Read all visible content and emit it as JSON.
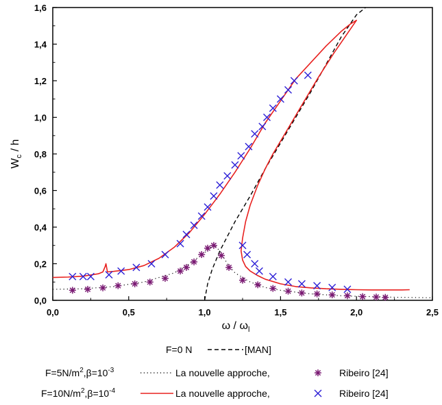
{
  "chart_data": {
    "type": "line",
    "xlabel": "ω / ω",
    "xlabel_sub": "l",
    "ylabel": "W",
    "ylabel_sub": "c",
    "ylabel_rest": " / h",
    "xlim": [
      0.0,
      2.5
    ],
    "ylim": [
      0.0,
      1.6
    ],
    "x_ticks": [
      "0,0",
      "0,5",
      "1,0",
      "1,5",
      "2,0",
      "2,5"
    ],
    "y_ticks": [
      "0,0",
      "0,2",
      "0,4",
      "0,6",
      "0,8",
      "1,0",
      "1,2",
      "1,4",
      "1,6"
    ],
    "grid": false,
    "colors": {
      "red": "#e8201e",
      "blue": "#2c1fd6",
      "purple": "#7a1a73",
      "black": "#000000"
    },
    "series": [
      {
        "key": "man_f0",
        "name": "[MAN]",
        "style": "dashed",
        "color": "#000000",
        "x": [
          1.0,
          1.02,
          1.05,
          1.1,
          1.2,
          1.3,
          1.4,
          1.5,
          1.6,
          1.7,
          1.8,
          1.9,
          2.0,
          2.06
        ],
        "y": [
          0.0,
          0.09,
          0.17,
          0.27,
          0.43,
          0.57,
          0.72,
          0.86,
          1.0,
          1.14,
          1.29,
          1.44,
          1.56,
          1.6
        ]
      },
      {
        "key": "nouvelle_f5",
        "name": "La nouvelle approche,",
        "style": "dotted",
        "color": "#000000",
        "x": [
          0.0,
          0.2,
          0.4,
          0.6,
          0.8,
          0.9,
          1.0,
          1.06,
          1.1,
          1.15,
          1.2,
          1.3,
          1.4,
          1.5,
          1.6,
          1.7,
          1.8,
          1.9,
          2.0,
          2.1,
          2.2,
          2.3,
          2.4,
          2.5
        ],
        "y": [
          0.06,
          0.063,
          0.075,
          0.1,
          0.15,
          0.2,
          0.26,
          0.305,
          0.27,
          0.2,
          0.15,
          0.1,
          0.07,
          0.055,
          0.045,
          0.035,
          0.03,
          0.025,
          0.022,
          0.02,
          0.018,
          0.016,
          0.015,
          0.014
        ]
      },
      {
        "key": "ribeiro_f5",
        "name": "Ribeiro [24]",
        "style": "asterisk",
        "color": "#7a1a73",
        "x": [
          0.13,
          0.23,
          0.33,
          0.43,
          0.54,
          0.64,
          0.74,
          0.84,
          0.88,
          0.93,
          0.98,
          1.02,
          1.06,
          1.11,
          1.16,
          1.25,
          1.35,
          1.45,
          1.55,
          1.64,
          1.74,
          1.84,
          1.94,
          2.04,
          2.13,
          2.19
        ],
        "y": [
          0.055,
          0.06,
          0.068,
          0.08,
          0.09,
          0.1,
          0.12,
          0.16,
          0.18,
          0.21,
          0.25,
          0.285,
          0.3,
          0.245,
          0.18,
          0.11,
          0.085,
          0.065,
          0.05,
          0.04,
          0.035,
          0.03,
          0.025,
          0.02,
          0.018,
          0.016
        ]
      },
      {
        "key": "nouvelle_f10",
        "name": "La nouvelle approche,",
        "style": "solid",
        "color": "#e8201e",
        "x": [
          0.0,
          0.1,
          0.2,
          0.3,
          0.33,
          0.345,
          0.35,
          0.36,
          0.4,
          0.5,
          0.6,
          0.7,
          0.8,
          0.9,
          1.0,
          1.1,
          1.2,
          1.3,
          1.4,
          1.5,
          1.6,
          1.7,
          1.8,
          1.9,
          1.96,
          2.0,
          1.95,
          1.85,
          1.75,
          1.65,
          1.55,
          1.45,
          1.4,
          1.35,
          1.3,
          1.27,
          1.25,
          1.24,
          1.25,
          1.27,
          1.3,
          1.35,
          1.4,
          1.5,
          1.6,
          1.7,
          1.8,
          1.9,
          2.0,
          2.1,
          2.2,
          2.3,
          2.35
        ],
        "y": [
          0.125,
          0.127,
          0.132,
          0.145,
          0.155,
          0.185,
          0.2,
          0.155,
          0.158,
          0.168,
          0.19,
          0.23,
          0.29,
          0.37,
          0.47,
          0.58,
          0.7,
          0.83,
          0.97,
          1.09,
          1.21,
          1.3,
          1.39,
          1.47,
          1.51,
          1.53,
          1.47,
          1.35,
          1.22,
          1.08,
          0.94,
          0.8,
          0.72,
          0.63,
          0.52,
          0.43,
          0.34,
          0.27,
          0.22,
          0.185,
          0.16,
          0.135,
          0.115,
          0.09,
          0.075,
          0.068,
          0.063,
          0.06,
          0.058,
          0.057,
          0.057,
          0.057,
          0.058
        ]
      },
      {
        "key": "ribeiro_f10",
        "name": "Ribeiro [24]",
        "style": "x",
        "color": "#2c1fd6",
        "x": [
          0.13,
          0.2,
          0.25,
          0.37,
          0.45,
          0.55,
          0.65,
          0.74,
          0.84,
          0.88,
          0.93,
          0.98,
          1.02,
          1.06,
          1.1,
          1.15,
          1.2,
          1.24,
          1.29,
          1.33,
          1.38,
          1.41,
          1.45,
          1.5,
          1.55,
          1.59,
          1.68,
          1.25,
          1.28,
          1.33,
          1.36,
          1.45,
          1.55,
          1.64,
          1.74,
          1.84,
          1.94
        ],
        "y": [
          0.13,
          0.13,
          0.13,
          0.14,
          0.16,
          0.18,
          0.2,
          0.25,
          0.31,
          0.36,
          0.41,
          0.46,
          0.51,
          0.57,
          0.63,
          0.68,
          0.74,
          0.79,
          0.84,
          0.91,
          0.95,
          1.0,
          1.05,
          1.1,
          1.15,
          1.2,
          1.23,
          0.3,
          0.25,
          0.2,
          0.16,
          0.13,
          0.1,
          0.09,
          0.08,
          0.07,
          0.06
        ]
      }
    ]
  },
  "legend": {
    "row1": {
      "label": "F=0 N",
      "series": "[MAN]"
    },
    "row2": {
      "label_pre": "F=5N/m",
      "label_sup1": "2",
      "label_mid": ",β=10",
      "label_sup2": "-3",
      "method": "La nouvelle approche,",
      "ref": "Ribeiro [24]"
    },
    "row3": {
      "label_pre": "F=10N/m",
      "label_sup1": "2",
      "label_mid": ",β=10",
      "label_sup2": "-4",
      "method": "La nouvelle approche,",
      "ref": "Ribeiro [24]"
    }
  }
}
